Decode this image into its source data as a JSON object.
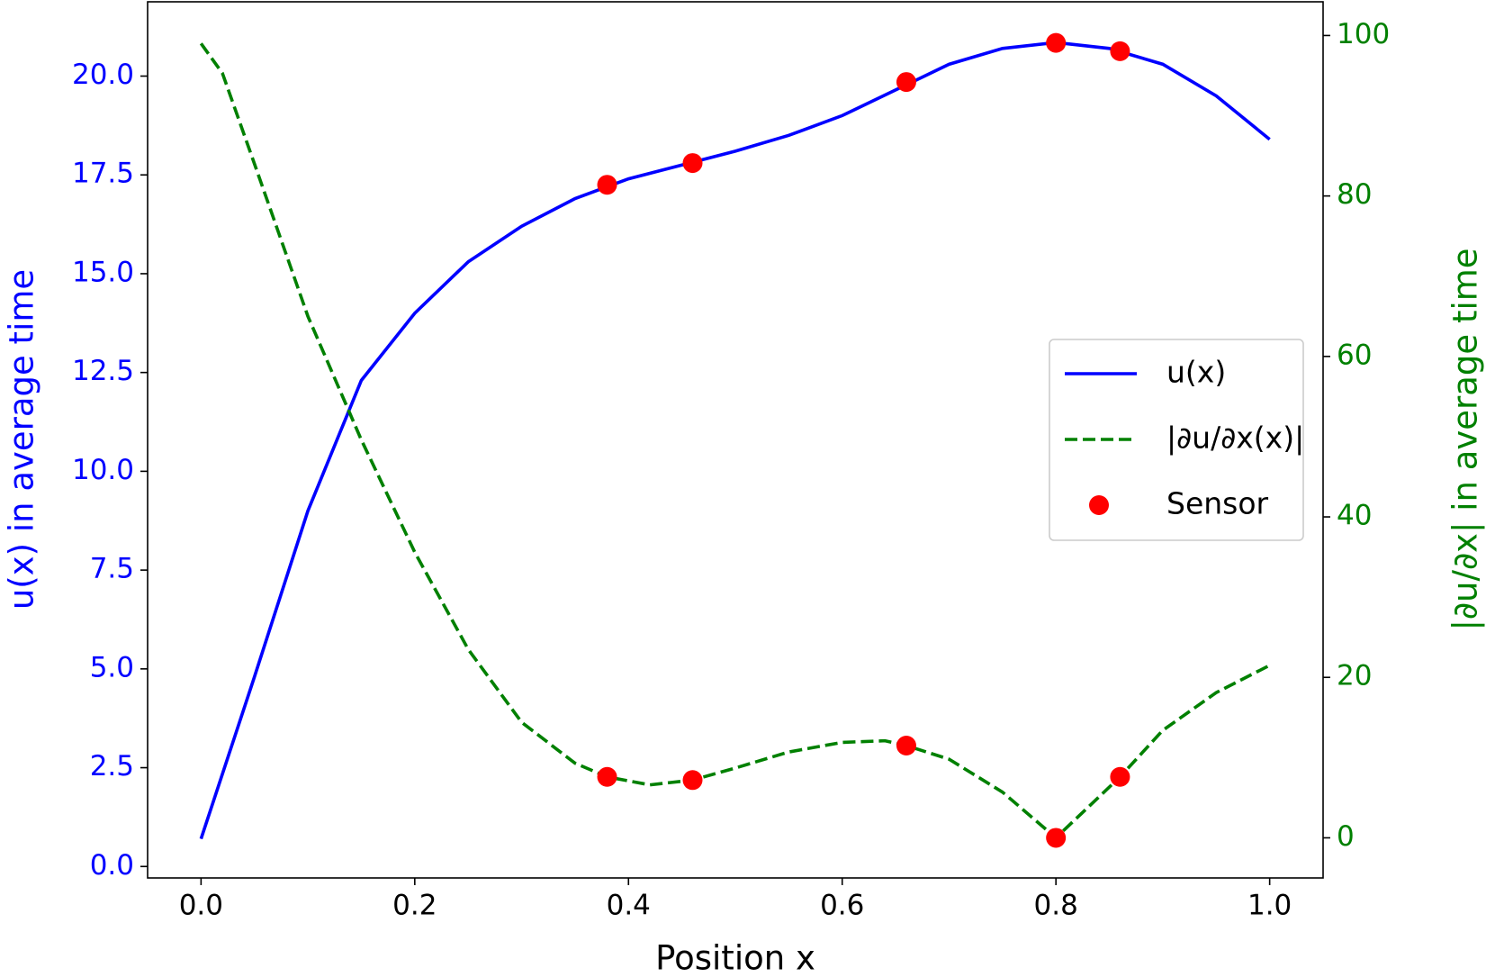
{
  "chart_data": {
    "type": "line",
    "x_label": "Position x",
    "y_label": "u(x) in average time",
    "y2_label": "|∂u/∂x| in average time",
    "xlim": [
      -0.05,
      1.05
    ],
    "xticks": [
      {
        "value": 0,
        "label": "0.0"
      },
      0.2,
      0.4,
      0.6,
      0.8,
      {
        "value": 1,
        "label": "1.0"
      }
    ],
    "ylim": [
      -0.29,
      21.88
    ],
    "yticks": [
      {
        "value": 0,
        "label": "0.0"
      },
      2.5,
      {
        "value": 5,
        "label": "5.0"
      },
      7.5,
      {
        "value": 10,
        "label": "10.0"
      },
      12.5,
      {
        "value": 15,
        "label": "15.0"
      },
      17.5,
      {
        "value": 20,
        "label": "20.0"
      }
    ],
    "y_color": "#0000ff",
    "y2lim": [
      -5,
      104.2
    ],
    "y2ticks": [
      0,
      20,
      40,
      60,
      80,
      100
    ],
    "y2_color": "#008000",
    "legend": "center right",
    "series": [
      {
        "name": "u(x)",
        "type": "line",
        "color": "#0000ff",
        "linestyle": "solid",
        "x": [
          0,
          0.05,
          0.1,
          0.15,
          0.2,
          0.25,
          0.3,
          0.35,
          0.4,
          0.45,
          0.5,
          0.55,
          0.6,
          0.65,
          0.7,
          0.75,
          0.8,
          0.85,
          0.9,
          0.95,
          1
        ],
        "values": [
          0.7,
          4.8,
          9.0,
          12.3,
          14.0,
          15.3,
          16.2,
          16.9,
          17.4,
          17.75,
          18.1,
          18.5,
          19.0,
          19.65,
          20.3,
          20.7,
          20.85,
          20.7,
          20.3,
          19.5,
          18.4
        ]
      },
      {
        "name": "|∂u/∂x(x)|",
        "type": "line",
        "color": "#008000",
        "linestyle": "dashed",
        "axis": "y2",
        "x": [
          0,
          0.02,
          0.05,
          0.1,
          0.15,
          0.2,
          0.25,
          0.3,
          0.35,
          0.38,
          0.42,
          0.46,
          0.5,
          0.55,
          0.6,
          0.64,
          0.66,
          0.7,
          0.75,
          0.8,
          0.86,
          0.9,
          0.95,
          1
        ],
        "values": [
          99,
          95.3,
          84,
          65,
          49.6,
          35.6,
          23.5,
          14.4,
          9.3,
          7.6,
          6.6,
          7.2,
          8.7,
          10.7,
          11.9,
          12.1,
          11.5,
          9.8,
          5.7,
          0,
          7.6,
          13.4,
          18.1,
          21.5
        ]
      },
      {
        "name": "Sensor",
        "type": "scatter",
        "color": "#ff0000",
        "x": [
          0.38,
          0.46,
          0.66,
          0.8,
          0.86
        ],
        "values": [
          17.25,
          17.8,
          19.85,
          20.84,
          20.63
        ],
        "values_y2": [
          7.6,
          7.2,
          11.5,
          0,
          7.6
        ]
      }
    ]
  }
}
